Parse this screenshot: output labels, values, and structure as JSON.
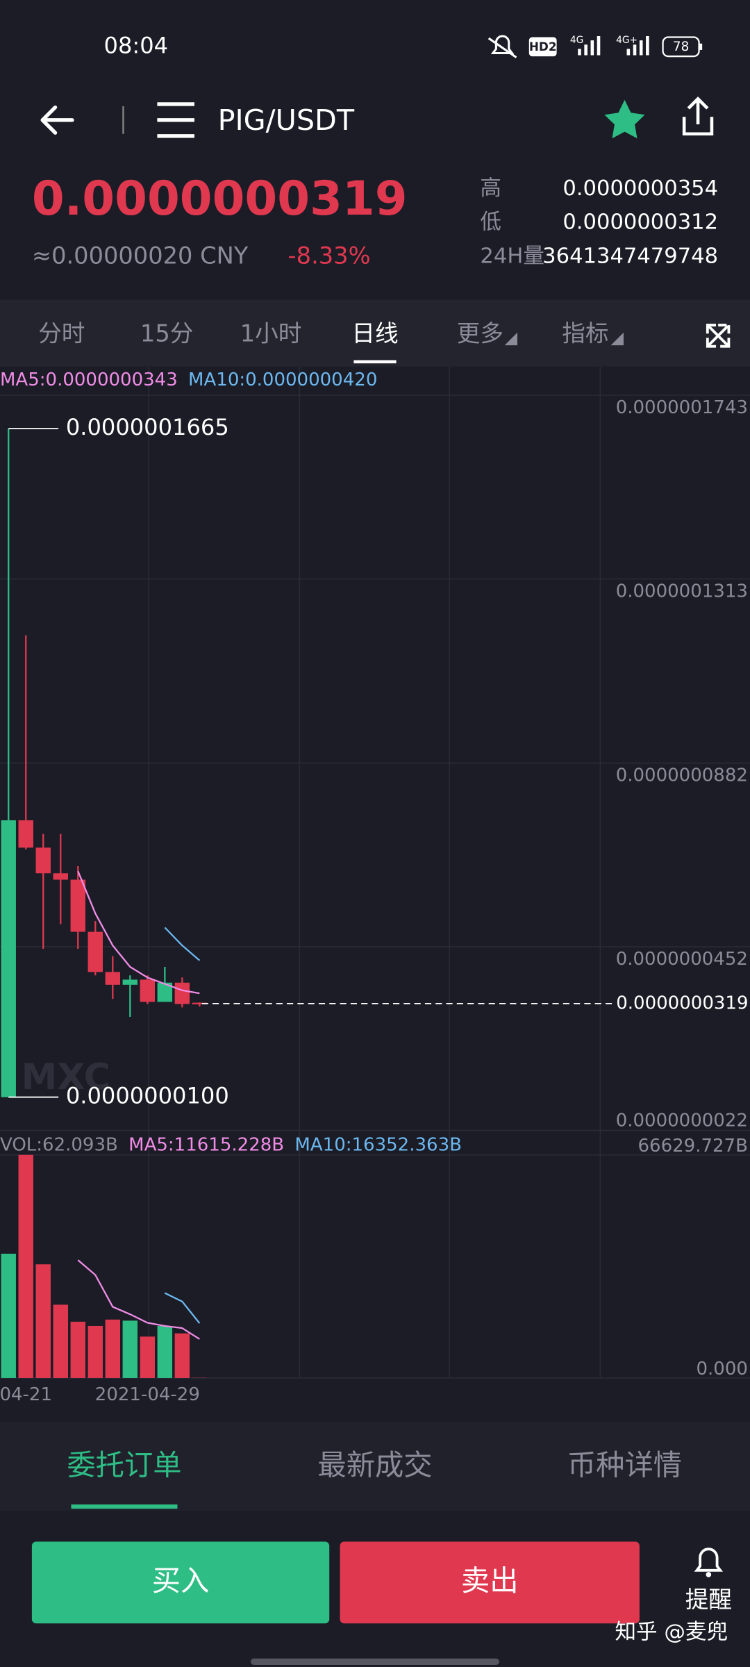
{
  "status_bar": {
    "time": "08:04",
    "hd": "HD2",
    "net1": "4G",
    "net2": "4G+",
    "battery": "78"
  },
  "header": {
    "pair": "PIG/USDT"
  },
  "ticker": {
    "price": "0.0000000319",
    "cny": "≈0.00000020 CNY",
    "change": "-8.33%",
    "high_label": "高",
    "high": "0.0000000354",
    "low_label": "低",
    "low": "0.0000000312",
    "vol_label": "24H量",
    "vol": "3641347479748"
  },
  "tabs": {
    "items": [
      "分时",
      "15分",
      "1小时",
      "日线",
      "更多",
      "指标"
    ],
    "active": 3
  },
  "logo": "MXC",
  "chart_data": [
    {
      "type": "candlestick",
      "up_color": "#2ebd85",
      "down_color": "#e0384f",
      "open": [
        1e-08,
        7.48e-08,
        6.84e-08,
        6.24e-08,
        6.09e-08,
        4.87e-08,
        3.93e-08,
        3.63e-08,
        3.75e-08,
        3.23e-08,
        3.68e-08,
        3.21e-08
      ],
      "close": [
        7.48e-08,
        6.84e-08,
        6.24e-08,
        6.09e-08,
        4.87e-08,
        3.93e-08,
        3.63e-08,
        3.75e-08,
        3.23e-08,
        3.68e-08,
        3.18e-08,
        3.19e-08
      ],
      "high": [
        1.665e-07,
        1.181e-07,
        7.16e-08,
        7.16e-08,
        6.41e-08,
        5.12e-08,
        4.3e-08,
        3.85e-08,
        3.85e-08,
        4.05e-08,
        3.8e-08,
        3.22e-08
      ],
      "low": [
        1e-08,
        6.8e-08,
        4.47e-08,
        5.05e-08,
        4.47e-08,
        3.85e-08,
        3.3e-08,
        2.88e-08,
        3.18e-08,
        3.23e-08,
        3.1e-08,
        3.12e-08
      ],
      "series": [
        {
          "name": "MA5:0.0000000343",
          "color": "#f08ce6",
          "values": [
            null,
            null,
            null,
            null,
            6.29e-08,
            5.3e-08,
            4.55e-08,
            4.05e-08,
            3.8e-08,
            3.65e-08,
            3.5e-08,
            3.43e-08
          ]
        },
        {
          "name": "MA10:0.0000000420",
          "color": "#6cb8f0",
          "values": [
            null,
            null,
            null,
            null,
            null,
            null,
            null,
            null,
            null,
            4.97e-08,
            4.55e-08,
            4.2e-08
          ]
        }
      ],
      "ylim": [
        2.2e-09,
        1.743e-07
      ],
      "yticks": [
        {
          "value": 1.743e-07,
          "label": "0.0000001743"
        },
        {
          "value": 1.313e-07,
          "label": "0.0000001313"
        },
        {
          "value": 8.82e-08,
          "label": "0.0000000882"
        },
        {
          "value": 4.52e-08,
          "label": "0.0000000452"
        },
        {
          "value": 2.2e-09,
          "label": "0.0000000022"
        }
      ],
      "max_marker": {
        "value": 1.665e-07,
        "label": "0.0000001665"
      },
      "min_marker": {
        "value": 1e-08,
        "label": "0.0000000100"
      },
      "last_price": {
        "value": 3.19e-08,
        "label": "0.0000000319"
      }
    },
    {
      "type": "bar",
      "name": "VOL:62.093B",
      "categories": [
        null,
        "04-21",
        null,
        null,
        null,
        null,
        null,
        null,
        "2021-04-29",
        null,
        null,
        null
      ],
      "values": [
        37120,
        66629.727,
        33950,
        21890,
        16820,
        15550,
        17450,
        17130,
        12370,
        15550,
        13330,
        62.093
      ],
      "series": [
        {
          "name": "MA5:11615.228B",
          "color": "#f08ce6",
          "values": [
            null,
            null,
            null,
            null,
            35220,
            30780,
            21260,
            19040,
            16500,
            15550,
            14910,
            11615.228
          ]
        },
        {
          "name": "MA10:16352.363B",
          "color": "#6cb8f0",
          "values": [
            null,
            null,
            null,
            null,
            null,
            null,
            null,
            null,
            null,
            25380,
            22840,
            16352.363
          ]
        }
      ],
      "ylim": [
        0,
        66629.727
      ],
      "yticks": [
        {
          "value": 66629.727,
          "label": "66629.727B"
        },
        {
          "value": 0,
          "label": "0.000"
        }
      ]
    }
  ],
  "bottom_tabs": {
    "items": [
      "委托订单",
      "最新成交",
      "币种详情"
    ],
    "active": 0
  },
  "buttons": {
    "buy": "买入",
    "sell": "卖出",
    "alert": "提醒"
  },
  "watermark": "知乎 @麦兜"
}
